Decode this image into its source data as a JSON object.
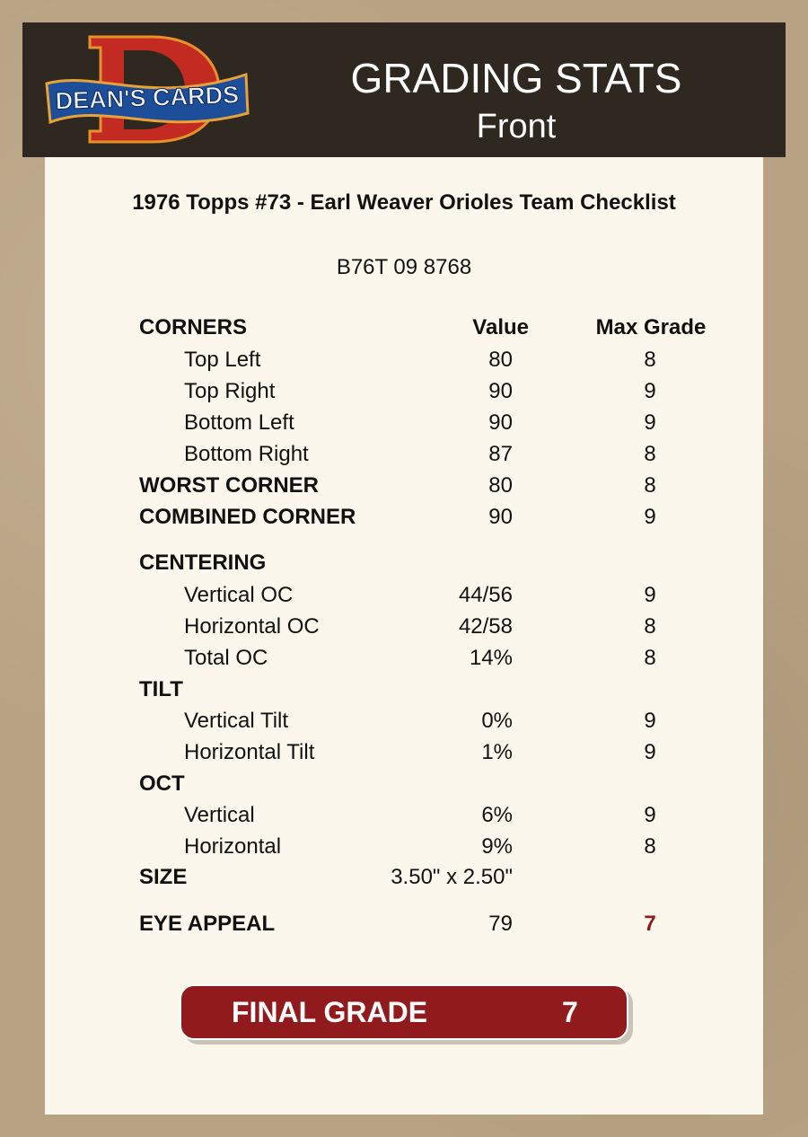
{
  "header": {
    "logo_text": "DEAN'S CARDS",
    "title": "GRADING STATS",
    "subtitle": "Front"
  },
  "card": {
    "title": "1976 Topps #73  -  Earl Weaver Orioles Team Checklist",
    "cert": "B76T 09 8768"
  },
  "columns": {
    "section": "CORNERS",
    "value": "Value",
    "max": "Max Grade"
  },
  "rows": [
    {
      "label": "Top Left",
      "value": "80",
      "max": "8"
    },
    {
      "label": "Top Right",
      "value": "90",
      "max": "9"
    },
    {
      "label": "Bottom Left",
      "value": "90",
      "max": "9"
    },
    {
      "label": "Bottom Right",
      "value": "87",
      "max": "8"
    },
    {
      "label": "WORST CORNER",
      "value": "80",
      "max": "8"
    },
    {
      "label": "COMBINED CORNER",
      "value": "90",
      "max": "9"
    },
    {
      "label": "CENTERING"
    },
    {
      "label": "Vertical OC",
      "value": "44/56",
      "max": "9"
    },
    {
      "label": "Horizontal OC",
      "value": "42/58",
      "max": "8"
    },
    {
      "label": "Total OC",
      "value": "14%",
      "max": "8"
    },
    {
      "label": "TILT"
    },
    {
      "label": "Vertical Tilt",
      "value": "0%",
      "max": "9"
    },
    {
      "label": "Horizontal Tilt",
      "value": "1%",
      "max": "9"
    },
    {
      "label": "OCT"
    },
    {
      "label": "Vertical",
      "value": "6%",
      "max": "9"
    },
    {
      "label": "Horizontal",
      "value": "9%",
      "max": "8"
    },
    {
      "label": "SIZE",
      "value": "3.50\" x 2.50\""
    },
    {
      "label": "EYE APPEAL",
      "value": "79",
      "max": "7"
    }
  ],
  "final": {
    "label": "FINAL GRADE",
    "value": "7"
  },
  "colors": {
    "header_bg": "#2e2820",
    "panel_bg": "#fcf7ec",
    "accent_red": "#911a1c"
  }
}
